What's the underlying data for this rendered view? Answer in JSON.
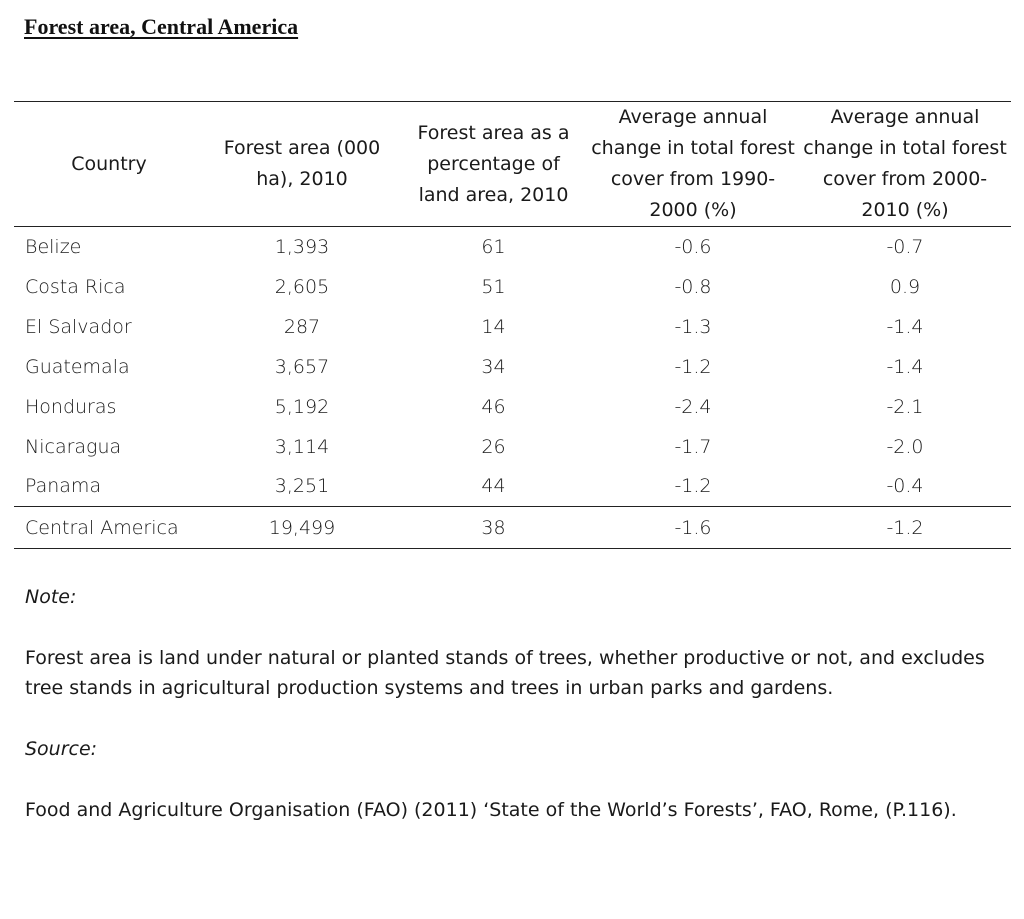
{
  "title": "Forest area, Central America",
  "table": {
    "headers": {
      "country": "Country",
      "area": "Forest area (000 ha), 2010",
      "pct": "Forest area as a percentage of land area, 2010",
      "change_1990_2000": "Average annual change in total forest cover from 1990-2000 (%)",
      "change_2000_2010": "Average annual change in total forest cover from 2000-2010 (%)"
    },
    "rows": [
      {
        "country": "Belize",
        "area": "1,393",
        "pct": "61",
        "c1": "-0.6",
        "c2": "-0.7"
      },
      {
        "country": "Costa Rica",
        "area": "2,605",
        "pct": "51",
        "c1": "-0.8",
        "c2": "0.9"
      },
      {
        "country": "El Salvador",
        "area": "287",
        "pct": "14",
        "c1": "-1.3",
        "c2": "-1.4"
      },
      {
        "country": "Guatemala",
        "area": "3,657",
        "pct": "34",
        "c1": "-1.2",
        "c2": "-1.4"
      },
      {
        "country": "Honduras",
        "area": "5,192",
        "pct": "46",
        "c1": "-2.4",
        "c2": "-2.1"
      },
      {
        "country": "Nicaragua",
        "area": "3,114",
        "pct": "26",
        "c1": "-1.7",
        "c2": "-2.0"
      },
      {
        "country": "Panama",
        "area": "3,251",
        "pct": "44",
        "c1": "-1.2",
        "c2": "-0.4"
      }
    ],
    "total": {
      "country": "Central America",
      "area": "19,499",
      "pct": "38",
      "c1": "-1.6",
      "c2": "-1.2"
    }
  },
  "note": {
    "label": "Note:",
    "text": "Forest area is land under natural or planted stands of trees, whether productive or not, and excludes tree stands in agricultural production systems and trees in urban parks and gardens."
  },
  "source": {
    "label": "Source:",
    "text": "Food and Agriculture Organisation (FAO) (2011) ‘State of the World’s Forests’, FAO, Rome, (P.116)."
  }
}
